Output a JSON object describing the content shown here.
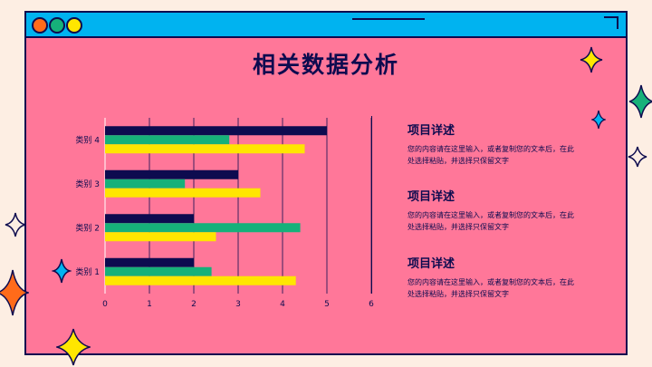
{
  "slide": {
    "title": "相关数据分析"
  },
  "colors": {
    "background": "#fdeee3",
    "panel": "#ff7799",
    "titlebar": "#00b3f0",
    "navy": "#0d0b4f",
    "green": "#16b17a",
    "yellow": "#ffe600",
    "orange": "#ff6b1a"
  },
  "details": [
    {
      "heading": "项目详述",
      "text": "您的内容请在这里输入，或者复制您的文本后，在此处选择粘贴，并选择只保留文字"
    },
    {
      "heading": "项目详述",
      "text": "您的内容请在这里输入，或者复制您的文本后，在此处选择粘贴，并选择只保留文字"
    },
    {
      "heading": "项目详述",
      "text": "您的内容请在这里输入，或者复制您的文本后，在此处选择粘贴，并选择只保留文字"
    }
  ],
  "chart_data": {
    "type": "bar",
    "orientation": "horizontal",
    "categories": [
      "类别 1",
      "类别 2",
      "类别 3",
      "类别 4"
    ],
    "series": [
      {
        "values": [
          2,
          2,
          3,
          5
        ],
        "color": "#0d0b4f"
      },
      {
        "values": [
          2.4,
          4.4,
          1.8,
          2.8
        ],
        "color": "#16b17a"
      },
      {
        "values": [
          4.3,
          2.5,
          3.5,
          4.5
        ],
        "color": "#ffe600"
      }
    ],
    "xlim": [
      0,
      6
    ],
    "xticks": [
      "0",
      "1",
      "2",
      "3",
      "4",
      "5",
      "6"
    ],
    "grid": true
  }
}
